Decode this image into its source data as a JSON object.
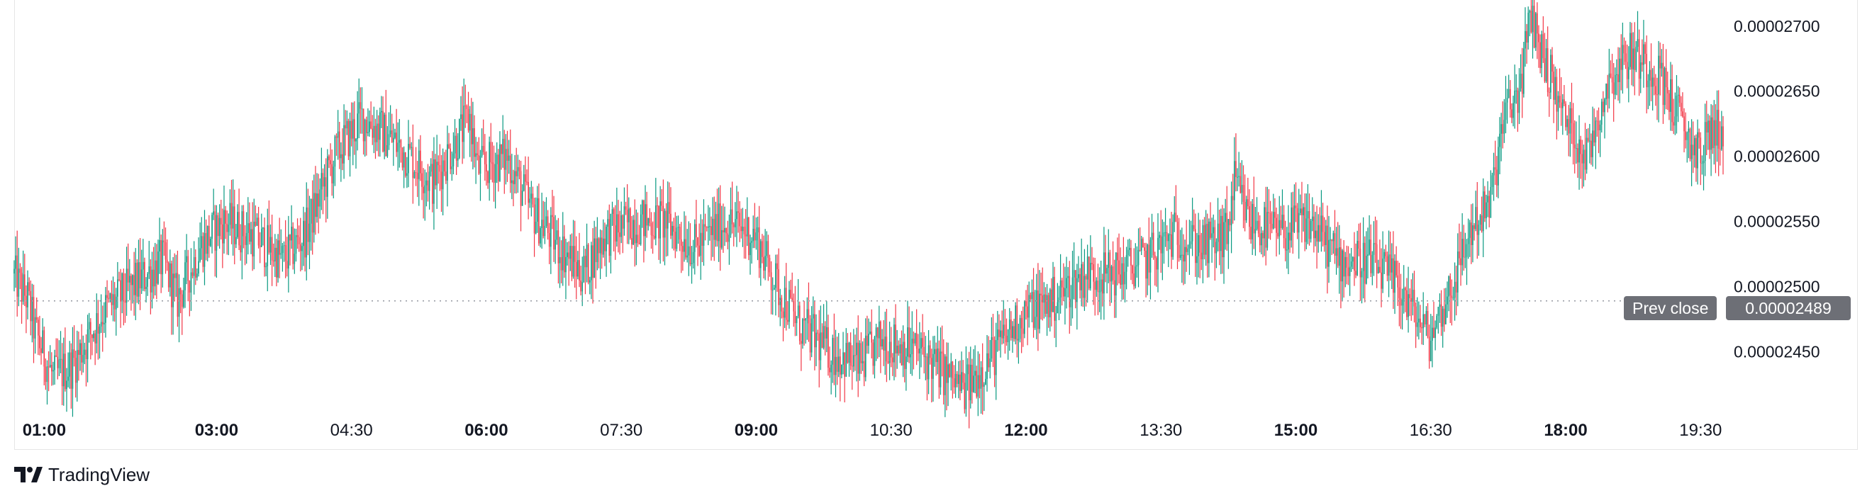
{
  "brand": {
    "name": "TradingView",
    "icon": "tradingview-logo-icon"
  },
  "prev_close": {
    "label": "Prev close",
    "value": "0.00002489"
  },
  "colors": {
    "up": "#089981",
    "down": "#f23645",
    "prev_close_line": "#9598a1",
    "badge": "#6d6f76"
  },
  "chart_data": {
    "type": "candlestick",
    "x_range": [
      "00:45",
      "19:45"
    ],
    "x_ticks": [
      {
        "time": "01:00",
        "label": "01:00",
        "major": true
      },
      {
        "time": "03:00",
        "label": "03:00",
        "major": true
      },
      {
        "time": "04:30",
        "label": "04:30",
        "major": false
      },
      {
        "time": "06:00",
        "label": "06:00",
        "major": true
      },
      {
        "time": "07:30",
        "label": "07:30",
        "major": false
      },
      {
        "time": "09:00",
        "label": "09:00",
        "major": true
      },
      {
        "time": "10:30",
        "label": "10:30",
        "major": false
      },
      {
        "time": "12:00",
        "label": "12:00",
        "major": true
      },
      {
        "time": "13:30",
        "label": "13:30",
        "major": false
      },
      {
        "time": "15:00",
        "label": "15:00",
        "major": true
      },
      {
        "time": "16:30",
        "label": "16:30",
        "major": false
      },
      {
        "time": "18:00",
        "label": "18:00",
        "major": true
      },
      {
        "time": "19:30",
        "label": "19:30",
        "major": false
      }
    ],
    "y_range": [
      2.41e-05,
      2.72e-05
    ],
    "y_ticks": [
      {
        "value": 2.45e-05,
        "label": "0.00002450"
      },
      {
        "value": 2.5e-05,
        "label": "0.00002500"
      },
      {
        "value": 2.55e-05,
        "label": "0.00002550"
      },
      {
        "value": 2.6e-05,
        "label": "0.00002600"
      },
      {
        "value": 2.65e-05,
        "label": "0.00002650"
      },
      {
        "value": 2.7e-05,
        "label": "0.00002700"
      }
    ],
    "prev_close": 2.489e-05,
    "price_path": [
      [
        "00:45",
        2.51e-05
      ],
      [
        "00:55",
        2.49e-05
      ],
      [
        "01:00",
        2.465e-05
      ],
      [
        "01:12",
        2.43e-05
      ],
      [
        "01:25",
        2.44e-05
      ],
      [
        "01:45",
        2.48e-05
      ],
      [
        "02:05",
        2.5e-05
      ],
      [
        "02:25",
        2.52e-05
      ],
      [
        "02:35",
        2.49e-05
      ],
      [
        "02:50",
        2.53e-05
      ],
      [
        "03:05",
        2.55e-05
      ],
      [
        "03:25",
        2.54e-05
      ],
      [
        "03:45",
        2.52e-05
      ],
      [
        "04:00",
        2.54e-05
      ],
      [
        "04:20",
        2.6e-05
      ],
      [
        "04:38",
        2.63e-05
      ],
      [
        "04:50",
        2.62e-05
      ],
      [
        "05:10",
        2.6e-05
      ],
      [
        "05:25",
        2.58e-05
      ],
      [
        "05:40",
        2.61e-05
      ],
      [
        "05:50",
        2.63e-05
      ],
      [
        "05:55",
        2.59e-05
      ],
      [
        "06:15",
        2.6e-05
      ],
      [
        "06:30",
        2.56e-05
      ],
      [
        "06:50",
        2.53e-05
      ],
      [
        "07:05",
        2.51e-05
      ],
      [
        "07:20",
        2.54e-05
      ],
      [
        "07:40",
        2.55e-05
      ],
      [
        "08:00",
        2.55e-05
      ],
      [
        "08:20",
        2.53e-05
      ],
      [
        "08:40",
        2.55e-05
      ],
      [
        "09:00",
        2.54e-05
      ],
      [
        "09:15",
        2.5e-05
      ],
      [
        "09:30",
        2.47e-05
      ],
      [
        "09:50",
        2.45e-05
      ],
      [
        "10:10",
        2.44e-05
      ],
      [
        "10:25",
        2.46e-05
      ],
      [
        "10:50",
        2.45e-05
      ],
      [
        "11:10",
        2.43e-05
      ],
      [
        "11:20",
        2.42e-05
      ],
      [
        "11:40",
        2.45e-05
      ],
      [
        "12:00",
        2.48e-05
      ],
      [
        "12:20",
        2.49e-05
      ],
      [
        "12:40",
        2.51e-05
      ],
      [
        "13:00",
        2.51e-05
      ],
      [
        "13:20",
        2.52e-05
      ],
      [
        "13:40",
        2.54e-05
      ],
      [
        "14:00",
        2.53e-05
      ],
      [
        "14:15",
        2.54e-05
      ],
      [
        "14:20",
        2.58e-05
      ],
      [
        "14:30",
        2.55e-05
      ],
      [
        "14:50",
        2.54e-05
      ],
      [
        "15:10",
        2.55e-05
      ],
      [
        "15:30",
        2.52e-05
      ],
      [
        "15:50",
        2.52e-05
      ],
      [
        "16:10",
        2.5e-05
      ],
      [
        "16:20",
        2.48e-05
      ],
      [
        "16:30",
        2.46e-05
      ],
      [
        "16:45",
        2.5e-05
      ],
      [
        "17:00",
        2.55e-05
      ],
      [
        "17:10",
        2.56e-05
      ],
      [
        "17:20",
        2.63e-05
      ],
      [
        "17:30",
        2.65e-05
      ],
      [
        "17:38",
        2.71e-05
      ],
      [
        "17:45",
        2.68e-05
      ],
      [
        "18:00",
        2.63e-05
      ],
      [
        "18:15",
        2.6e-05
      ],
      [
        "18:30",
        2.66e-05
      ],
      [
        "18:45",
        2.68e-05
      ],
      [
        "19:05",
        2.66e-05
      ],
      [
        "19:20",
        2.62e-05
      ],
      [
        "19:30",
        2.6e-05
      ],
      [
        "19:38",
        2.62e-05
      ]
    ]
  }
}
